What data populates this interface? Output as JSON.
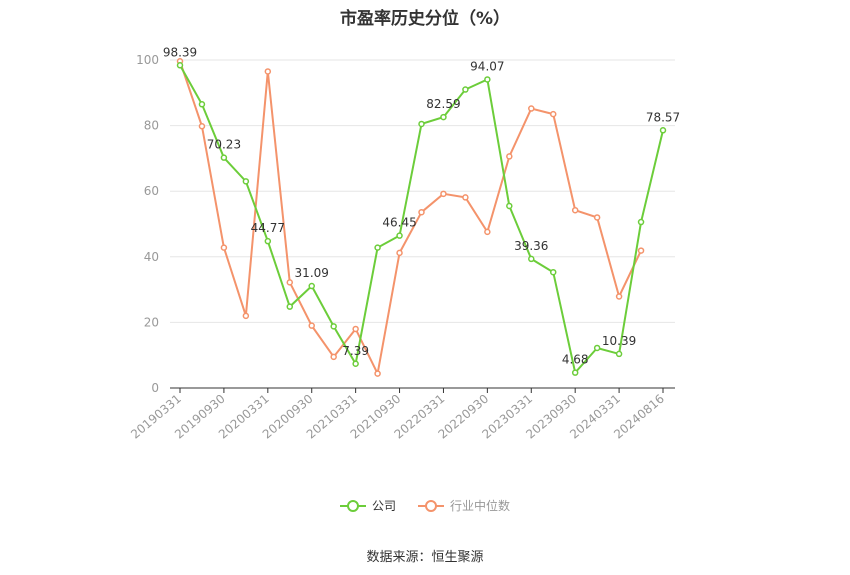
{
  "title": "市盈率历史分位（%）",
  "source": "数据来源：恒生聚源",
  "colors": {
    "company": "#6ccd3a",
    "industry": "#f4936b",
    "grid": "#e6e6e6",
    "axis": "#333333",
    "tick": "#999999"
  },
  "chart_data": {
    "type": "line",
    "title": "市盈率历史分位（%）",
    "xlabel": "",
    "ylabel": "",
    "ylim": [
      0,
      100
    ],
    "yticks": [
      0,
      20,
      40,
      60,
      80,
      100
    ],
    "grid": true,
    "legend_position": "bottom",
    "x": [
      "20190331",
      "20190630",
      "20190930",
      "20191231",
      "20200331",
      "20200630",
      "20200930",
      "20201231",
      "20210331",
      "20210630",
      "20210930",
      "20211231",
      "20220331",
      "20220630",
      "20220930",
      "20221231",
      "20230331",
      "20230630",
      "20230930",
      "20231231",
      "20240331",
      "20240630",
      "20240816"
    ],
    "xtick_labels": [
      "20190331",
      "20190930",
      "20200331",
      "20200930",
      "20210331",
      "20210930",
      "20220331",
      "20220930",
      "20230331",
      "20230930",
      "20240331",
      "20240816"
    ],
    "series": [
      {
        "name": "公司",
        "values": [
          98.39,
          86.5,
          70.23,
          63.0,
          44.77,
          24.8,
          31.09,
          18.8,
          7.39,
          42.8,
          46.45,
          80.5,
          82.59,
          91.0,
          94.07,
          55.5,
          39.36,
          35.3,
          4.68,
          12.2,
          10.39,
          50.6,
          78.57
        ],
        "data_labels": [
          {
            "index": 0,
            "text": "98.39"
          },
          {
            "index": 2,
            "text": "70.23"
          },
          {
            "index": 4,
            "text": "44.77"
          },
          {
            "index": 6,
            "text": "31.09"
          },
          {
            "index": 8,
            "text": "7.39"
          },
          {
            "index": 10,
            "text": "46.45"
          },
          {
            "index": 12,
            "text": "82.59"
          },
          {
            "index": 14,
            "text": "94.07"
          },
          {
            "index": 16,
            "text": "39.36"
          },
          {
            "index": 18,
            "text": "4.68"
          },
          {
            "index": 20,
            "text": "10.39"
          },
          {
            "index": 22,
            "text": "78.57"
          }
        ]
      },
      {
        "name": "行业中位数",
        "values": [
          99.6,
          79.8,
          42.8,
          22.0,
          96.5,
          32.2,
          19.0,
          9.5,
          18.0,
          4.4,
          41.2,
          53.6,
          59.2,
          58.1,
          47.6,
          70.6,
          85.2,
          83.5,
          54.2,
          52.0,
          27.9,
          41.9,
          null
        ]
      }
    ]
  }
}
